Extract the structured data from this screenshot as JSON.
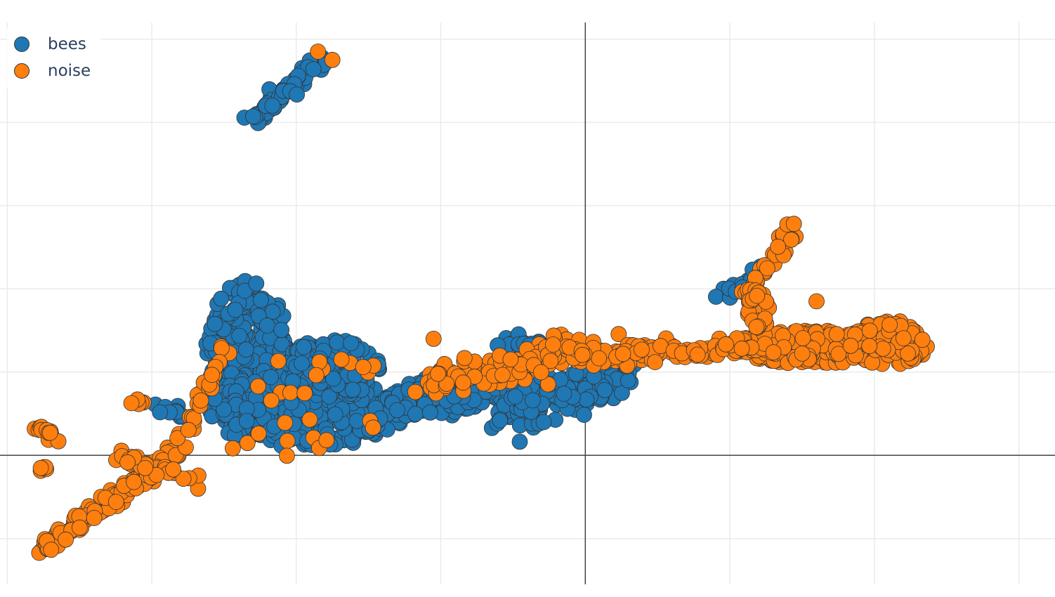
{
  "chart_data": {
    "type": "scatter",
    "title": "",
    "xlabel": "",
    "ylabel": "",
    "xlim": [
      -8.1,
      6.5
    ],
    "ylim": [
      -1.55,
      5.2
    ],
    "grid": true,
    "zero_lines": true,
    "tick_labels_visible": false,
    "legend_placement": "top-left",
    "series": [
      {
        "name": "bees",
        "color": "#1f77b4",
        "clusters": [
          {
            "kind": "segment",
            "from": [
              -4.6,
              4.0
            ],
            "to": [
              -3.6,
              4.8
            ],
            "spread": 0.05,
            "count": 70
          },
          {
            "kind": "blob",
            "center": [
              -4.65,
              1.25
            ],
            "radii": [
              0.6,
              0.85
            ],
            "count": 220
          },
          {
            "kind": "blob",
            "center": [
              -3.85,
              0.55
            ],
            "radii": [
              1.4,
              0.45
            ],
            "count": 320
          },
          {
            "kind": "blob",
            "center": [
              -3.5,
              1.05
            ],
            "radii": [
              0.65,
              0.35
            ],
            "count": 110
          },
          {
            "kind": "segment",
            "from": [
              -2.9,
              0.55
            ],
            "to": [
              -1.0,
              0.8
            ],
            "spread": 0.12,
            "count": 160
          },
          {
            "kind": "segment",
            "from": [
              -1.1,
              0.55
            ],
            "to": [
              0.6,
              0.95
            ],
            "spread": 0.13,
            "count": 170
          },
          {
            "kind": "segment",
            "from": [
              -1.2,
              1.35
            ],
            "to": [
              -0.6,
              1.35
            ],
            "spread": 0.05,
            "count": 16
          },
          {
            "kind": "segment",
            "from": [
              -5.9,
              0.6
            ],
            "to": [
              -5.5,
              0.52
            ],
            "spread": 0.04,
            "count": 10
          },
          {
            "kind": "segment",
            "from": [
              1.85,
              1.9
            ],
            "to": [
              2.5,
              2.25
            ],
            "spread": 0.05,
            "count": 18
          }
        ]
      },
      {
        "name": "noise",
        "color": "#ff7f0e",
        "clusters": [
          {
            "kind": "segment",
            "from": [
              -7.5,
              -1.1
            ],
            "to": [
              -5.6,
              0.05
            ],
            "spread": 0.05,
            "count": 140
          },
          {
            "kind": "segment",
            "from": [
              -6.6,
              0.05
            ],
            "to": [
              -5.3,
              -0.3
            ],
            "spread": 0.07,
            "count": 30
          },
          {
            "kind": "segment",
            "from": [
              -7.6,
              0.33
            ],
            "to": [
              -7.3,
              0.22
            ],
            "spread": 0.03,
            "count": 12
          },
          {
            "kind": "segment",
            "from": [
              -7.55,
              -0.18
            ],
            "to": [
              -7.4,
              -0.16
            ],
            "spread": 0.02,
            "count": 6
          },
          {
            "kind": "segment",
            "from": [
              -6.3,
              0.65
            ],
            "to": [
              -6.1,
              0.62
            ],
            "spread": 0.02,
            "count": 5
          },
          {
            "kind": "segment",
            "from": [
              -5.6,
              0.1
            ],
            "to": [
              -5.0,
              1.3
            ],
            "spread": 0.06,
            "count": 28
          },
          {
            "kind": "segment",
            "from": [
              -2.2,
              0.85
            ],
            "to": [
              -0.2,
              1.25
            ],
            "spread": 0.1,
            "count": 120
          },
          {
            "kind": "segment",
            "from": [
              -0.2,
              1.2
            ],
            "to": [
              1.2,
              1.25
            ],
            "spread": 0.06,
            "count": 90
          },
          {
            "kind": "segment",
            "from": [
              1.2,
              1.25
            ],
            "to": [
              1.9,
              1.25
            ],
            "spread": 0.04,
            "count": 30
          },
          {
            "kind": "blob",
            "center": [
              3.1,
              1.3
            ],
            "radii": [
              1.2,
              0.2
            ],
            "count": 300
          },
          {
            "kind": "blob",
            "center": [
              4.2,
              1.35
            ],
            "radii": [
              0.55,
              0.27
            ],
            "count": 140
          },
          {
            "kind": "segment",
            "from": [
              2.2,
              1.85
            ],
            "to": [
              2.9,
              2.8
            ],
            "spread": 0.05,
            "count": 34
          },
          {
            "kind": "blob",
            "center": [
              2.4,
              1.75
            ],
            "radii": [
              0.15,
              0.25
            ],
            "count": 40
          },
          {
            "kind": "scatter",
            "center": [
              -3.8,
              0.55
            ],
            "radii": [
              1.1,
              0.65
            ],
            "count": 26
          },
          {
            "kind": "point",
            "at": [
              -2.1,
              1.4
            ]
          },
          {
            "kind": "point",
            "at": [
              3.2,
              1.85
            ]
          },
          {
            "kind": "point",
            "at": [
              -3.7,
              4.85
            ]
          },
          {
            "kind": "point",
            "at": [
              -3.5,
              4.75
            ]
          }
        ]
      }
    ]
  }
}
